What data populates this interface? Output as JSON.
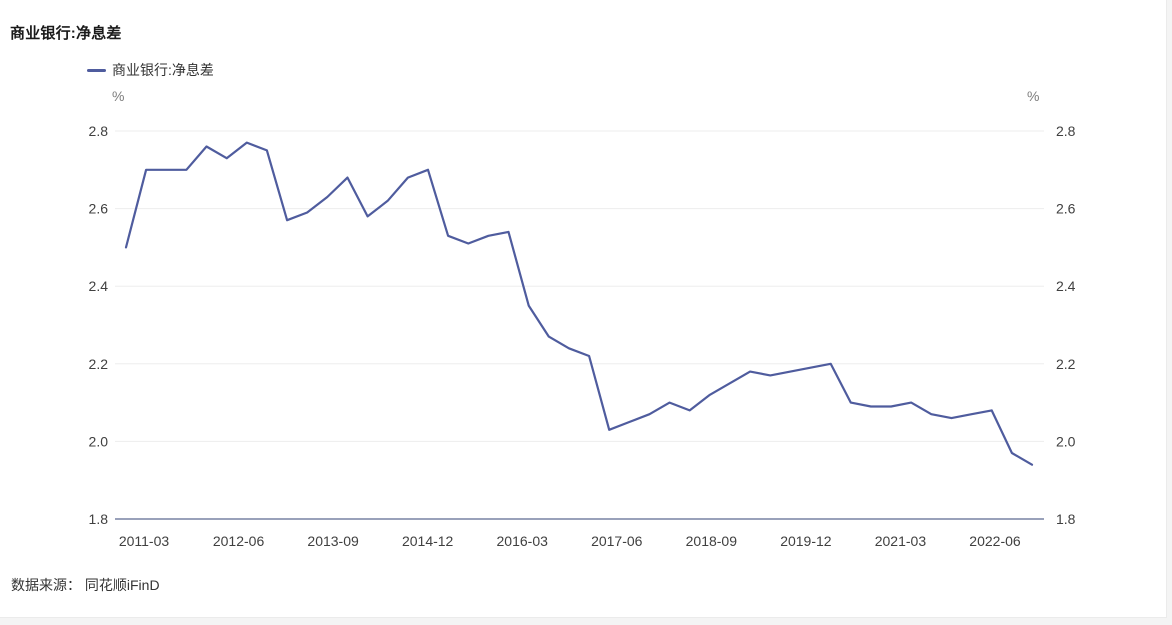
{
  "page": {
    "title": "商业银行:净息差",
    "source": "数据来源： 同花顺iFinD"
  },
  "legend": {
    "label": "商业银行:净息差"
  },
  "chart_data": {
    "type": "line",
    "title": "商业银行:净息差",
    "series_name": "商业银行:净息差",
    "unit": "%",
    "ylabel": "%",
    "ylim": [
      1.8,
      2.8
    ],
    "y_tick_labels": [
      "1.8",
      "2.0",
      "2.2",
      "2.4",
      "2.6",
      "2.8"
    ],
    "grid": true,
    "legend_position": "top-left",
    "line_color": "#4f5c9e",
    "axis_line_color": "#99a1ba",
    "grid_color": "#ededed",
    "tick_text_color": "#404040",
    "unit_text_color": "#7d7d7d",
    "categories": [
      "2011-03",
      "2011-06",
      "2011-09",
      "2011-12",
      "2012-03",
      "2012-06",
      "2012-09",
      "2012-12",
      "2013-03",
      "2013-06",
      "2013-09",
      "2013-12",
      "2014-03",
      "2014-06",
      "2014-09",
      "2014-12",
      "2015-03",
      "2015-06",
      "2015-09",
      "2015-12",
      "2016-03",
      "2016-06",
      "2016-09",
      "2016-12",
      "2017-03",
      "2017-06",
      "2017-09",
      "2017-12",
      "2018-03",
      "2018-06",
      "2018-09",
      "2018-12",
      "2019-03",
      "2019-06",
      "2019-09",
      "2019-12",
      "2020-03",
      "2020-06",
      "2020-09",
      "2020-12",
      "2021-03",
      "2021-06",
      "2021-09",
      "2021-12",
      "2022-03",
      "2022-06"
    ],
    "values": [
      2.5,
      2.7,
      2.7,
      2.7,
      2.76,
      2.73,
      2.77,
      2.75,
      2.57,
      2.59,
      2.63,
      2.68,
      2.58,
      2.62,
      2.68,
      2.7,
      2.53,
      2.51,
      2.53,
      2.54,
      2.35,
      2.27,
      2.24,
      2.22,
      2.03,
      2.05,
      2.07,
      2.1,
      2.08,
      2.12,
      2.15,
      2.18,
      2.17,
      2.18,
      2.19,
      2.2,
      2.1,
      2.09,
      2.09,
      2.1,
      2.07,
      2.06,
      2.07,
      2.08,
      1.97,
      1.94
    ],
    "visible_x_labels": [
      "2011-03",
      "2012-06",
      "2013-09",
      "2014-12",
      "2016-03",
      "2017-06",
      "2018-09",
      "2019-12",
      "2021-03",
      "2022-06"
    ],
    "visible_x_label_interval": 5
  }
}
